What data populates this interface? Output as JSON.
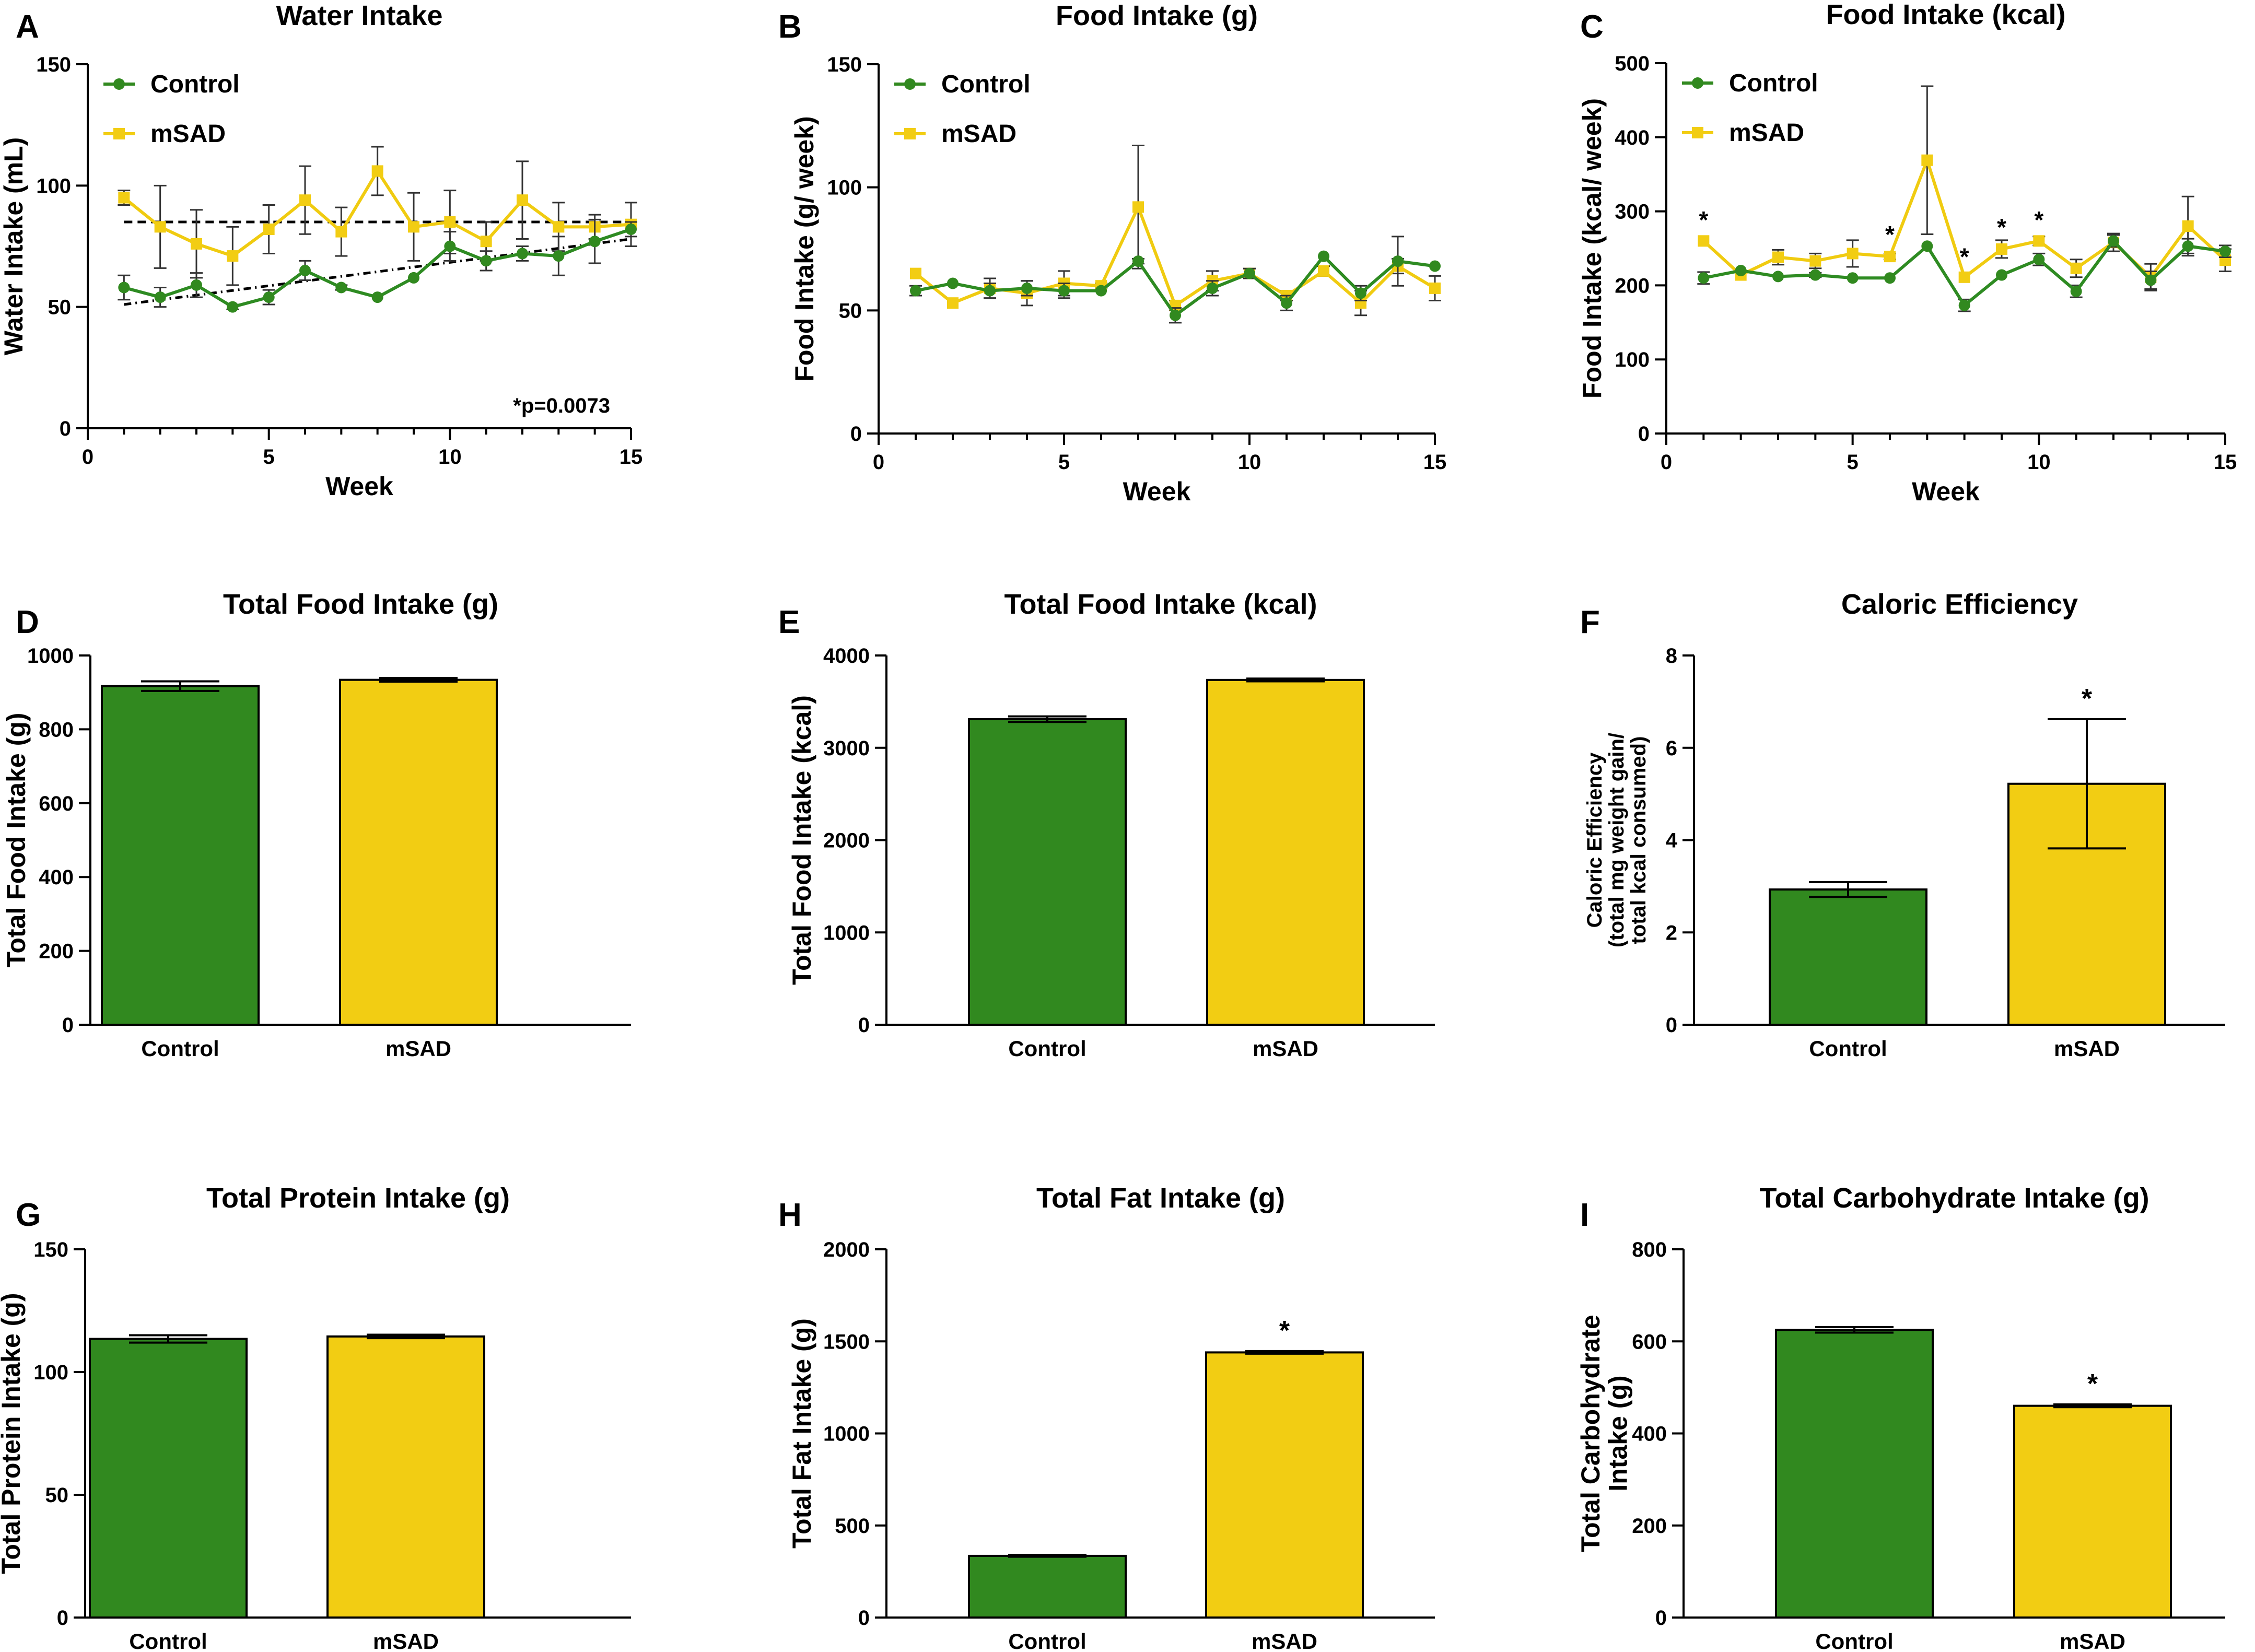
{
  "colors": {
    "control": "#31891f",
    "control_line": "#2e8b22",
    "msad": "#f2cd13",
    "msad_line": "#f0cb10",
    "axis": "#000000",
    "background": "#ffffff"
  },
  "chart_data": [
    {
      "id": "A",
      "panel": "A",
      "type": "line",
      "title": "Water Intake",
      "xlabel": "Week",
      "ylabel": "Water Intake (mL)",
      "xlim": [
        0,
        15
      ],
      "ylim": [
        0,
        150
      ],
      "xticks": [
        "0",
        "5",
        "10",
        "15"
      ],
      "yticks": [
        "0",
        "50",
        "100",
        "150"
      ],
      "legend": "top-left",
      "annotation": "*p=0.0073",
      "x": [
        1,
        2,
        3,
        4,
        5,
        6,
        7,
        8,
        9,
        10,
        11,
        12,
        13,
        14,
        15
      ],
      "series": [
        {
          "name": "Control",
          "color_key": "control",
          "marker": "circle",
          "values": [
            58,
            54,
            59,
            50,
            54,
            65,
            58,
            54,
            62,
            75,
            69,
            72,
            71,
            77,
            82
          ],
          "errors": [
            5,
            4,
            5,
            1,
            3,
            4,
            1,
            0,
            0,
            6,
            4,
            3,
            8,
            9,
            3
          ]
        },
        {
          "name": "mSAD",
          "color_key": "msad",
          "marker": "square",
          "values": [
            95,
            83,
            76,
            71,
            82,
            94,
            81,
            106,
            83,
            85,
            77,
            94,
            83,
            83,
            84
          ],
          "errors": [
            3,
            17,
            14,
            12,
            10,
            14,
            10,
            10,
            14,
            13,
            8,
            16,
            10,
            5,
            9
          ]
        }
      ],
      "trendlines": [
        {
          "style": "dashed",
          "x": [
            1,
            15
          ],
          "values": [
            85,
            85
          ]
        },
        {
          "style": "dashdot",
          "x": [
            1,
            15
          ],
          "values": [
            51,
            78
          ]
        }
      ],
      "asterisks": []
    },
    {
      "id": "B",
      "panel": "B",
      "type": "line",
      "title": "Food Intake (g)",
      "xlabel": "Week",
      "ylabel": "Food Intake (g/ week)",
      "xlim": [
        0,
        15
      ],
      "ylim": [
        0,
        150
      ],
      "xticks": [
        "0",
        "5",
        "10",
        "15"
      ],
      "yticks": [
        "0",
        "50",
        "100",
        "150"
      ],
      "legend": "top-left",
      "x": [
        1,
        2,
        3,
        4,
        5,
        6,
        7,
        8,
        9,
        10,
        11,
        12,
        13,
        14,
        15
      ],
      "series": [
        {
          "name": "Control",
          "color_key": "control",
          "marker": "circle",
          "values": [
            58,
            61,
            58,
            59,
            58,
            58,
            70,
            48,
            59,
            65,
            53,
            72,
            57,
            70,
            68
          ],
          "errors": [
            2,
            0,
            3,
            3,
            3,
            0,
            1,
            3,
            3,
            2,
            3,
            0,
            3,
            10,
            0
          ]
        },
        {
          "name": "mSAD",
          "color_key": "msad",
          "marker": "square",
          "values": [
            65,
            53,
            59,
            57,
            61,
            60,
            92,
            52,
            62,
            65,
            56,
            66,
            53,
            68,
            59
          ],
          "errors": [
            0,
            0,
            4,
            5,
            5,
            1,
            25,
            2,
            4,
            2,
            2,
            2,
            5,
            3,
            5
          ]
        }
      ],
      "asterisks": []
    },
    {
      "id": "C",
      "panel": "C",
      "type": "line",
      "title": "Food Intake (kcal)",
      "xlabel": "Week",
      "ylabel": "Food Intake (kcal/ week)",
      "xlim": [
        0,
        15
      ],
      "ylim": [
        0,
        500
      ],
      "xticks": [
        "0",
        "5",
        "10",
        "15"
      ],
      "yticks": [
        "0",
        "100",
        "200",
        "300",
        "400",
        "500"
      ],
      "legend": "top-left",
      "x": [
        1,
        2,
        3,
        4,
        5,
        6,
        7,
        8,
        9,
        10,
        11,
        12,
        13,
        14,
        15
      ],
      "series": [
        {
          "name": "Control",
          "color_key": "control",
          "marker": "circle",
          "values": [
            210,
            220,
            212,
            214,
            210,
            210,
            253,
            173,
            214,
            235,
            192,
            260,
            207,
            253,
            246
          ],
          "errors": [
            8,
            0,
            0,
            3,
            0,
            0,
            0,
            8,
            0,
            8,
            8,
            8,
            12,
            10,
            8
          ]
        },
        {
          "name": "mSAD",
          "color_key": "msad",
          "marker": "square",
          "values": [
            260,
            214,
            238,
            233,
            243,
            239,
            369,
            211,
            249,
            260,
            223,
            258,
            211,
            280,
            234
          ],
          "errors": [
            0,
            0,
            10,
            10,
            18,
            4,
            100,
            0,
            12,
            6,
            12,
            12,
            18,
            40,
            15
          ]
        }
      ],
      "asterisks": [
        {
          "label": "*",
          "x": 1,
          "y": 290
        },
        {
          "label": "*",
          "x": 6,
          "y": 270
        },
        {
          "label": "*",
          "x": 8,
          "y": 240
        },
        {
          "label": "*",
          "x": 9,
          "y": 280
        },
        {
          "label": "*",
          "x": 10,
          "y": 290
        }
      ]
    },
    {
      "id": "D",
      "panel": "D",
      "type": "bar",
      "title": "Total Food Intake (g)",
      "ylabel": "Total Food  Intake (g)",
      "ylim": [
        0,
        1000
      ],
      "yticks": [
        "0",
        "200",
        "400",
        "600",
        "800",
        "1000"
      ],
      "categories": [
        "Control",
        "mSAD"
      ],
      "values": [
        917,
        934
      ],
      "errors": [
        13,
        5
      ],
      "asterisks": []
    },
    {
      "id": "E",
      "panel": "E",
      "type": "bar",
      "title": "Total Food Intake (kcal)",
      "ylabel": "Total Food Intake (kcal)",
      "ylim": [
        0,
        4000
      ],
      "yticks": [
        "0",
        "1000",
        "2000",
        "3000",
        "4000"
      ],
      "categories": [
        "Control",
        "mSAD"
      ],
      "values": [
        3310,
        3735
      ],
      "errors": [
        30,
        15
      ],
      "asterisks": []
    },
    {
      "id": "F",
      "panel": "F",
      "type": "bar",
      "title": "Caloric Efficiency",
      "ylabel": [
        "Caloric Efficiency",
        "(total mg weight gain/",
        "total kcal consumed)"
      ],
      "ylim": [
        0,
        8
      ],
      "yticks": [
        "0",
        "2",
        "4",
        "6",
        "8"
      ],
      "categories": [
        "Control",
        "mSAD"
      ],
      "values": [
        2.93,
        5.22
      ],
      "errors": [
        0.16,
        1.4
      ],
      "asterisks": [
        {
          "label": "*",
          "index": 1
        }
      ]
    },
    {
      "id": "G",
      "panel": "G",
      "type": "bar",
      "title": "Total Protein Intake (g)",
      "ylabel": "Total Protein Intake (g)",
      "ylim": [
        0,
        150
      ],
      "yticks": [
        "0",
        "50",
        "100",
        "150"
      ],
      "categories": [
        "Control",
        "mSAD"
      ],
      "values": [
        113.5,
        114.5
      ],
      "errors": [
        1.5,
        0.7
      ],
      "asterisks": []
    },
    {
      "id": "H",
      "panel": "H",
      "type": "bar",
      "title": "Total Fat Intake (g)",
      "ylabel": "Total Fat Intake (g)",
      "ylim": [
        0,
        2000
      ],
      "yticks": [
        "0",
        "500",
        "1000",
        "1500",
        "2000"
      ],
      "categories": [
        "Control",
        "mSAD"
      ],
      "values": [
        335,
        1440
      ],
      "errors": [
        5,
        7
      ],
      "asterisks": [
        {
          "label": "*",
          "index": 1
        }
      ]
    },
    {
      "id": "I",
      "panel": "I",
      "type": "bar",
      "title": "Total Carbohydrate Intake (g)",
      "ylabel": [
        "Total Carbohydrate",
        "Intake (g)"
      ],
      "ylim": [
        0,
        800
      ],
      "yticks": [
        "0",
        "200",
        "400",
        "600",
        "800"
      ],
      "categories": [
        "Control",
        "mSAD"
      ],
      "values": [
        625,
        460
      ],
      "errors": [
        6,
        3
      ],
      "asterisks": [
        {
          "label": "*",
          "index": 1
        }
      ]
    }
  ]
}
